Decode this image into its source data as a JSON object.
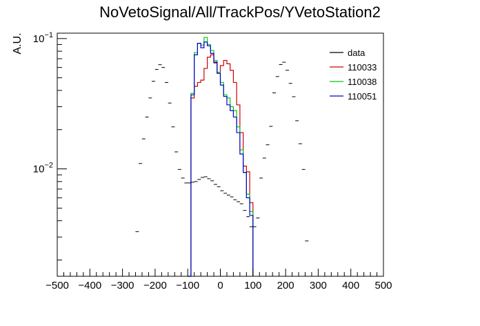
{
  "chart_data": {
    "type": "line",
    "title": "NoVetoSignal/All/TrackPos/YVetoStation2",
    "xlabel": "",
    "ylabel": "A.U.",
    "xlim": [
      -500,
      500
    ],
    "ylim": [
      0.0015,
      0.11
    ],
    "yscale": "log",
    "grid": false,
    "legend_position": "top-right",
    "x_ticks": [
      -500,
      -400,
      -300,
      -200,
      -100,
      0,
      100,
      200,
      300,
      400,
      500
    ],
    "y_ticks": [
      {
        "value": 0.01,
        "base": "10",
        "exp": "−2"
      },
      {
        "value": 0.1,
        "base": "10",
        "exp": "−1"
      }
    ],
    "legend": [
      {
        "label": "data",
        "color": "#000000"
      },
      {
        "label": "110033",
        "color": "#cc0000"
      },
      {
        "label": "110038",
        "color": "#00cc00"
      },
      {
        "label": "110051",
        "color": "#0000cc"
      }
    ],
    "data": {
      "name": "data",
      "color": "#000000",
      "points": [
        [
          -255,
          0.0033
        ],
        [
          -245,
          0.011
        ],
        [
          -235,
          0.017
        ],
        [
          -225,
          0.025
        ],
        [
          -215,
          0.035
        ],
        [
          -205,
          0.047
        ],
        [
          -195,
          0.058
        ],
        [
          -185,
          0.063
        ],
        [
          -175,
          0.06
        ],
        [
          -165,
          0.046
        ],
        [
          -155,
          0.032
        ],
        [
          -145,
          0.021
        ],
        [
          -135,
          0.0135
        ],
        [
          -125,
          0.0099
        ],
        [
          -115,
          0.0085
        ],
        [
          -105,
          0.0078
        ],
        [
          -95,
          0.0078
        ],
        [
          -85,
          0.0079
        ],
        [
          -75,
          0.008
        ],
        [
          -65,
          0.0083
        ],
        [
          -55,
          0.0086
        ],
        [
          -45,
          0.0087
        ],
        [
          -35,
          0.0084
        ],
        [
          -25,
          0.0081
        ],
        [
          -15,
          0.0076
        ],
        [
          -5,
          0.0073
        ],
        [
          5,
          0.0068
        ],
        [
          15,
          0.0065
        ],
        [
          25,
          0.0063
        ],
        [
          35,
          0.0061
        ],
        [
          45,
          0.0058
        ],
        [
          55,
          0.0056
        ],
        [
          65,
          0.0054
        ],
        [
          75,
          0.0048
        ],
        [
          85,
          0.0043
        ],
        [
          95,
          0.0036
        ],
        [
          105,
          0.0036
        ],
        [
          115,
          0.0042
        ],
        [
          125,
          0.0085
        ],
        [
          135,
          0.0121
        ],
        [
          145,
          0.0153
        ],
        [
          155,
          0.0212
        ],
        [
          165,
          0.0383
        ],
        [
          175,
          0.0511
        ],
        [
          185,
          0.0632
        ],
        [
          195,
          0.0658
        ],
        [
          205,
          0.0571
        ],
        [
          215,
          0.0453
        ],
        [
          225,
          0.0358
        ],
        [
          235,
          0.0234
        ],
        [
          245,
          0.0156
        ],
        [
          255,
          0.0099
        ],
        [
          265,
          0.0028
        ]
      ]
    },
    "series": [
      {
        "name": "110033",
        "color": "#cc0000",
        "bin_edges": [
          -100,
          -90,
          -80,
          -70,
          -60,
          -50,
          -40,
          -30,
          -20,
          -10,
          0,
          10,
          20,
          30,
          40,
          50,
          60,
          70,
          80,
          90,
          100
        ],
        "values": [
          0.0012,
          0.035,
          0.043,
          0.046,
          0.048,
          0.059,
          0.072,
          0.075,
          0.065,
          0.055,
          0.062,
          0.068,
          0.064,
          0.057,
          0.046,
          0.031,
          0.019,
          0.0105,
          0.0095,
          0.0055
        ]
      },
      {
        "name": "110038",
        "color": "#00cc00",
        "bin_edges": [
          -100,
          -90,
          -80,
          -70,
          -60,
          -50,
          -40,
          -30,
          -20,
          -10,
          0,
          10,
          20,
          30,
          40,
          50,
          60,
          70,
          80,
          90,
          100
        ],
        "values": [
          0.0014,
          0.038,
          0.078,
          0.092,
          0.089,
          0.102,
          0.09,
          0.081,
          0.068,
          0.055,
          0.046,
          0.037,
          0.035,
          0.03,
          0.028,
          0.021,
          0.014,
          0.0094,
          0.0064,
          0.0047
        ]
      },
      {
        "name": "110051",
        "color": "#0000cc",
        "bin_edges": [
          -100,
          -90,
          -80,
          -70,
          -60,
          -50,
          -40,
          -30,
          -20,
          -10,
          0,
          10,
          20,
          30,
          40,
          50,
          60,
          70,
          80,
          90,
          100
        ],
        "values": [
          0.0014,
          0.037,
          0.075,
          0.092,
          0.085,
          0.094,
          0.088,
          0.077,
          0.066,
          0.054,
          0.044,
          0.036,
          0.031,
          0.028,
          0.025,
          0.019,
          0.013,
          0.0094,
          0.006,
          0.0044
        ]
      }
    ]
  }
}
